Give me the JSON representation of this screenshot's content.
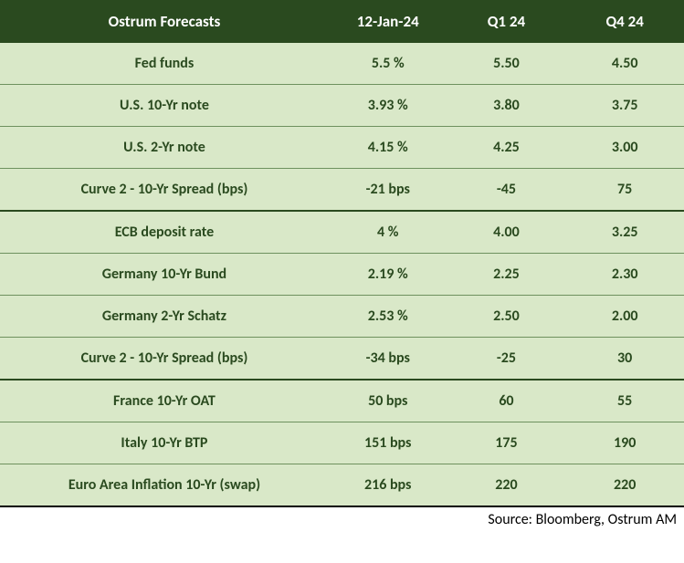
{
  "header": {
    "title": "Ostrum Forecasts",
    "col1": "12-Jan-24",
    "col2": "Q1 24",
    "col3": "Q4 24"
  },
  "rows": [
    {
      "label": "Fed funds",
      "v1": "5.5 %",
      "v2": "5.50",
      "v3": "4.50",
      "thick": false
    },
    {
      "label": "U.S.  10-Yr note",
      "v1": "3.93 %",
      "v2": "3.80",
      "v3": "3.75",
      "thick": false
    },
    {
      "label": "U.S. 2-Yr note",
      "v1": "4.15 %",
      "v2": "4.25",
      "v3": "3.00",
      "thick": false
    },
    {
      "label": "Curve 2 - 10-Yr Spread (bps)",
      "v1": "-21 bps",
      "v2": "-45",
      "v3": "75",
      "thick": true
    },
    {
      "label": "ECB deposit rate",
      "v1": "4 %",
      "v2": "4.00",
      "v3": "3.25",
      "thick": false
    },
    {
      "label": "Germany  10-Yr Bund",
      "v1": "2.19 %",
      "v2": "2.25",
      "v3": "2.30",
      "thick": false
    },
    {
      "label": "Germany  2-Yr Schatz",
      "v1": "2.53 %",
      "v2": "2.50",
      "v3": "2.00",
      "thick": false
    },
    {
      "label": "Curve 2 - 10-Yr Spread (bps)",
      "v1": "-34 bps",
      "v2": "-25",
      "v3": "30",
      "thick": true
    },
    {
      "label": "France 10-Yr OAT",
      "v1": "50 bps",
      "v2": "60",
      "v3": "55",
      "thick": false
    },
    {
      "label": "Italy 10-Yr BTP",
      "v1": "151 bps",
      "v2": "175",
      "v3": "190",
      "thick": false
    },
    {
      "label": "Euro Area Inflation 10-Yr (swap)",
      "v1": "216 bps",
      "v2": "220",
      "v3": "220",
      "thick": false
    }
  ],
  "source": "Source: Bloomberg, Ostrum AM",
  "colors": {
    "header_bg": "#2a4a1f",
    "header_text": "#ffffff",
    "row_bg": "#d9e8c8",
    "row_text": "#2a4a1f",
    "row_border": "#6e915e",
    "thick_border": "#2a4a1f"
  }
}
